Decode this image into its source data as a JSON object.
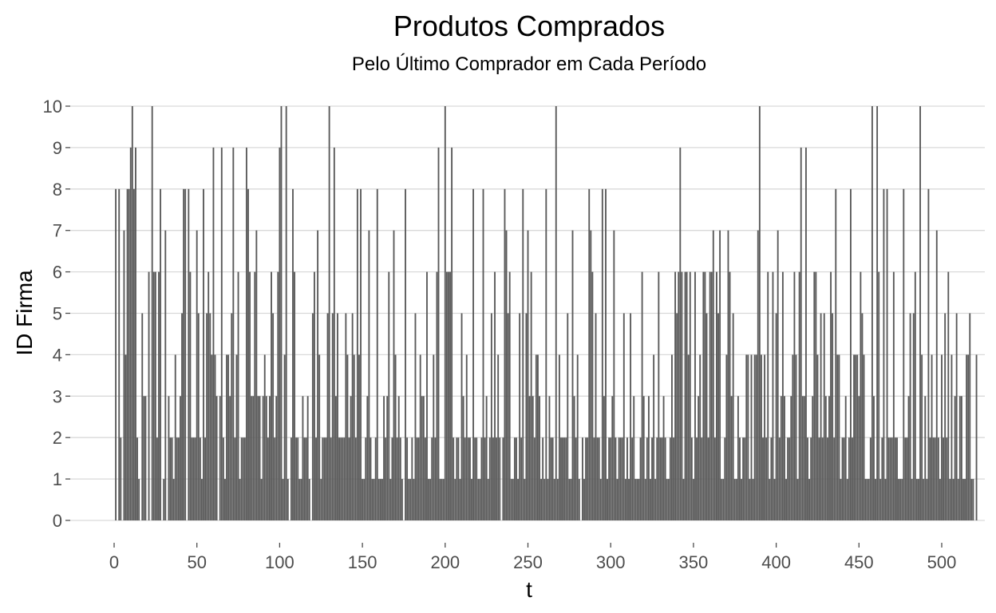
{
  "chart_data": {
    "type": "bar",
    "title": "Produtos Comprados",
    "subtitle": "Pelo Último Comprador em Cada Período",
    "xlabel": "t",
    "ylabel": "ID Firma",
    "xlim": [
      0,
      500
    ],
    "ylim": [
      0,
      10
    ],
    "x_ticks": [
      0,
      50,
      100,
      150,
      200,
      250,
      300,
      350,
      400,
      450,
      500
    ],
    "y_ticks": [
      0,
      1,
      2,
      3,
      4,
      5,
      6,
      7,
      8,
      9,
      10
    ],
    "grid": "horizontal-major",
    "legend": "none",
    "bar_color": "#595959",
    "x_start": 1,
    "values": [
      8,
      0,
      8,
      2,
      0,
      7,
      4,
      8,
      8,
      9,
      10,
      8,
      9,
      2,
      1,
      0,
      5,
      3,
      3,
      0,
      6,
      0,
      10,
      6,
      6,
      2,
      6,
      8,
      0,
      1,
      7,
      0,
      3,
      2,
      2,
      1,
      4,
      2,
      2,
      3,
      5,
      8,
      8,
      0,
      8,
      6,
      2,
      2,
      2,
      7,
      5,
      2,
      1,
      8,
      2,
      5,
      6,
      5,
      4,
      9,
      4,
      3,
      0,
      3,
      9,
      2,
      1,
      4,
      4,
      3,
      5,
      9,
      2,
      4,
      6,
      1,
      2,
      2,
      2,
      9,
      8,
      6,
      3,
      3,
      6,
      7,
      3,
      3,
      1,
      3,
      4,
      3,
      2,
      3,
      6,
      5,
      2,
      3,
      6,
      9,
      10,
      1,
      4,
      10,
      1,
      0,
      2,
      8,
      6,
      2,
      2,
      1,
      1,
      3,
      2,
      2,
      3,
      1,
      0,
      5,
      6,
      2,
      7,
      4,
      1,
      2,
      2,
      2,
      5,
      10,
      2,
      5,
      9,
      3,
      5,
      2,
      2,
      2,
      2,
      5,
      4,
      2,
      3,
      5,
      4,
      2,
      8,
      4,
      8,
      1,
      1,
      2,
      3,
      7,
      2,
      1,
      1,
      2,
      8,
      1,
      1,
      1,
      3,
      2,
      3,
      6,
      1,
      2,
      7,
      4,
      2,
      3,
      2,
      1,
      0,
      8,
      2,
      1,
      1,
      2,
      1,
      5,
      2,
      2,
      4,
      3,
      3,
      2,
      6,
      1,
      1,
      2,
      4,
      2,
      6,
      9,
      1,
      1,
      1,
      10,
      6,
      6,
      6,
      9,
      2,
      1,
      2,
      2,
      1,
      5,
      3,
      2,
      4,
      2,
      2,
      1,
      8,
      2,
      2,
      1,
      1,
      2,
      8,
      2,
      3,
      1,
      2,
      5,
      2,
      6,
      2,
      4,
      2,
      0,
      2,
      8,
      7,
      5,
      6,
      1,
      1,
      2,
      2,
      1,
      5,
      2,
      8,
      1,
      5,
      7,
      3,
      6,
      3,
      2,
      4,
      4,
      3,
      1,
      2,
      1,
      8,
      1,
      3,
      2,
      2,
      1,
      10,
      1,
      4,
      2,
      2,
      2,
      2,
      5,
      1,
      1,
      7,
      3,
      2,
      4,
      1,
      0,
      2,
      1,
      2,
      2,
      8,
      7,
      6,
      2,
      5,
      2,
      2,
      1,
      8,
      3,
      8,
      1,
      2,
      2,
      3,
      7,
      2,
      1,
      2,
      2,
      2,
      5,
      1,
      2,
      1,
      5,
      2,
      3,
      1,
      1,
      1,
      2,
      6,
      3,
      1,
      2,
      3,
      1,
      2,
      4,
      1,
      2,
      6,
      2,
      2,
      3,
      2,
      1,
      1,
      2,
      4,
      2,
      6,
      5,
      6,
      9,
      6,
      1,
      6,
      6,
      4,
      6,
      2,
      1,
      6,
      2,
      3,
      4,
      2,
      6,
      6,
      5,
      2,
      6,
      6,
      7,
      2,
      6,
      5,
      7,
      1,
      1,
      2,
      4,
      7,
      6,
      3,
      5,
      1,
      1,
      3,
      2,
      1,
      2,
      2,
      4,
      4,
      1,
      4,
      1,
      4,
      4,
      7,
      10,
      4,
      2,
      4,
      2,
      6,
      1,
      2,
      6,
      1,
      5,
      7,
      2,
      3,
      6,
      3,
      1,
      2,
      2,
      3,
      4,
      6,
      4,
      1,
      6,
      9,
      3,
      3,
      9,
      2,
      1,
      2,
      3,
      6,
      6,
      4,
      2,
      5,
      2,
      5,
      3,
      2,
      3,
      6,
      5,
      2,
      8,
      4,
      4,
      1,
      2,
      2,
      3,
      1,
      2,
      8,
      2,
      4,
      4,
      4,
      3,
      6,
      5,
      4,
      1,
      1,
      1,
      2,
      10,
      3,
      1,
      10,
      6,
      1,
      2,
      8,
      1,
      8,
      2,
      2,
      2,
      6,
      2,
      2,
      1,
      1,
      1,
      8,
      2,
      2,
      3,
      5,
      1,
      5,
      6,
      1,
      1,
      10,
      4,
      1,
      3,
      1,
      8,
      2,
      4,
      2,
      2,
      7,
      2,
      1,
      4,
      2,
      5,
      2,
      6,
      1,
      4,
      1,
      3,
      5,
      1,
      3,
      3,
      1,
      1,
      4,
      4,
      5,
      1,
      1,
      0,
      4
    ]
  }
}
